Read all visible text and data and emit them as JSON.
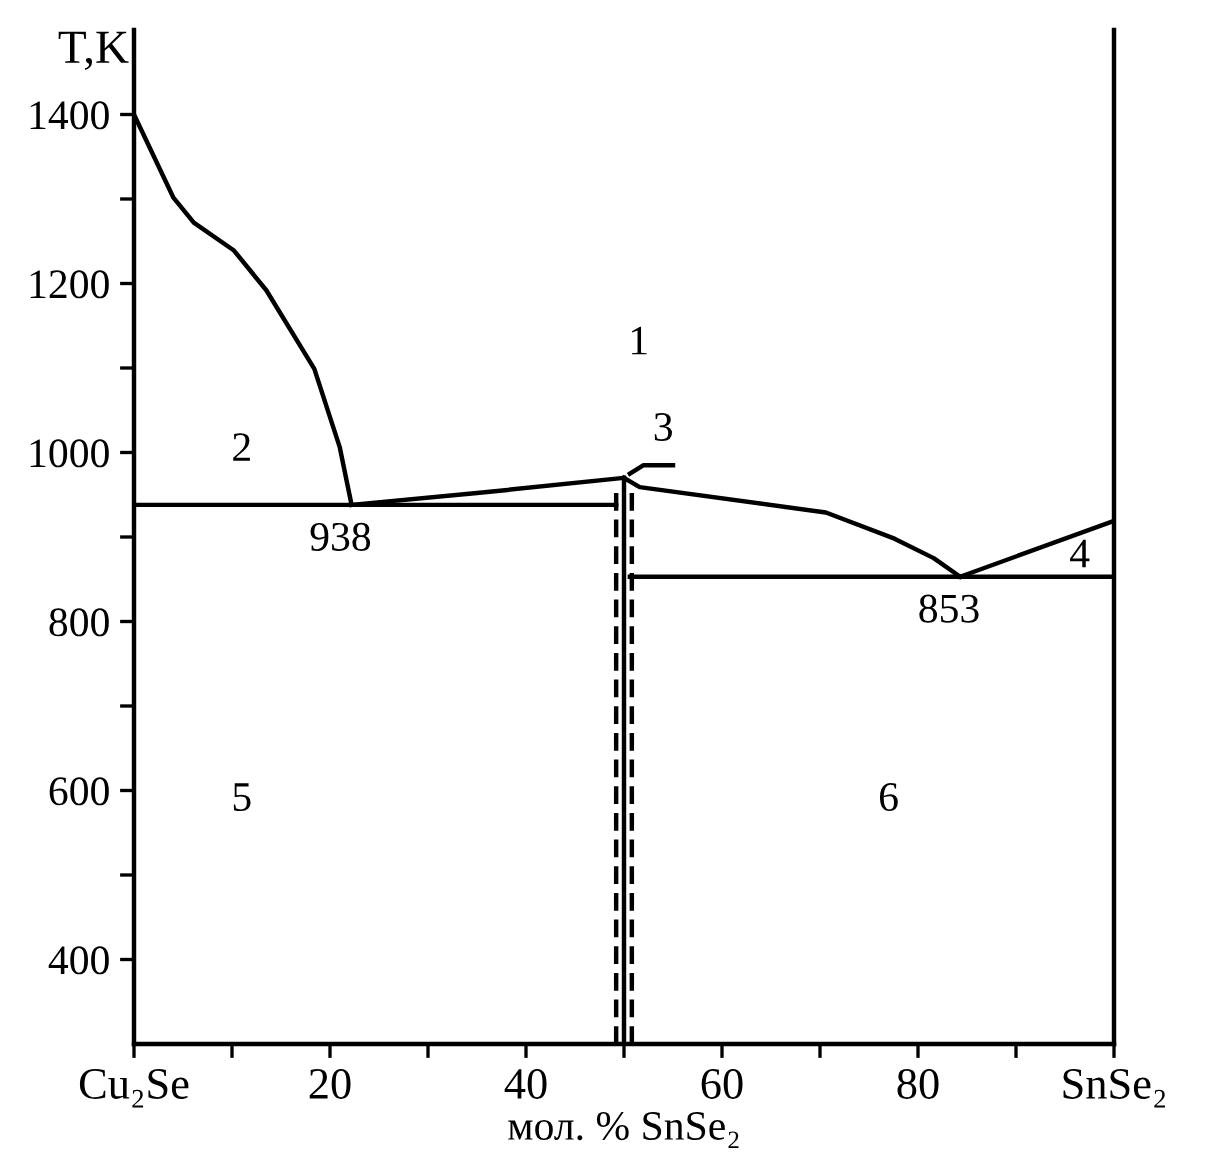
{
  "chart_data": {
    "type": "line",
    "xlabel": "мол. % SnSe₂",
    "ylabel": "T,K",
    "xlim": [
      0,
      100
    ],
    "ylim": [
      300,
      1500
    ],
    "xticks": [
      {
        "value": 0,
        "label": "Cu₂Se"
      },
      {
        "value": 10,
        "label": null
      },
      20,
      {
        "value": 30,
        "label": null
      },
      40,
      {
        "value": 50,
        "label": null
      },
      60,
      {
        "value": 70,
        "label": null
      },
      80,
      {
        "value": 90,
        "label": null
      },
      {
        "value": 100,
        "label": "SnSe₂"
      }
    ],
    "yticks": [
      400,
      {
        "value": 500,
        "label": null
      },
      600,
      {
        "value": 700,
        "label": null
      },
      800,
      {
        "value": 900,
        "label": null
      },
      1000,
      {
        "value": 1100,
        "label": null
      },
      1200,
      {
        "value": 1300,
        "label": null
      },
      1400
    ],
    "grid": false,
    "marker": "none",
    "series": [
      {
        "color": "#000000",
        "x": [
          0,
          4,
          6.1,
          10.2,
          13.5,
          18.4,
          21,
          22.2
        ],
        "values": [
          1400,
          1302,
          1272,
          1239,
          1192,
          1099,
          1006,
          938
        ]
      },
      {
        "color": "#000000",
        "x": [
          22.2,
          35,
          50
        ],
        "values": [
          938,
          952,
          970
        ]
      },
      {
        "color": "#000000",
        "x": [
          50,
          51.6,
          70.6,
          77.6,
          81.6,
          84.3
        ],
        "values": [
          970,
          959,
          929,
          898,
          875,
          853
        ]
      },
      {
        "color": "#000000",
        "x": [
          84.3,
          100
        ],
        "values": [
          853,
          919
        ]
      },
      {
        "color": "#000000",
        "x": [
          0,
          49.2
        ],
        "values": [
          938,
          938
        ]
      },
      {
        "color": "#000000",
        "x": [
          50.6,
          100
        ],
        "values": [
          853,
          853
        ]
      },
      {
        "color": "#000000",
        "x": [
          50.6,
          52,
          55
        ],
        "values": [
          975,
          985,
          985
        ]
      },
      {
        "color": "#000000",
        "x": [
          50,
          50
        ],
        "values": [
          300,
          970
        ]
      },
      {
        "color": "#000000",
        "line_style": "dashed",
        "x": [
          49.2,
          49.2
        ],
        "values": [
          300,
          960
        ]
      },
      {
        "color": "#000000",
        "line_style": "dashed",
        "x": [
          50.8,
          50.8
        ],
        "values": [
          300,
          960
        ]
      }
    ],
    "annotations": [
      "1",
      "2",
      "3",
      "4",
      "5",
      "6",
      {
        "text": "938",
        "x": 22.2,
        "y": 938
      },
      {
        "text": "853",
        "x": 84.3,
        "y": 853
      }
    ]
  }
}
